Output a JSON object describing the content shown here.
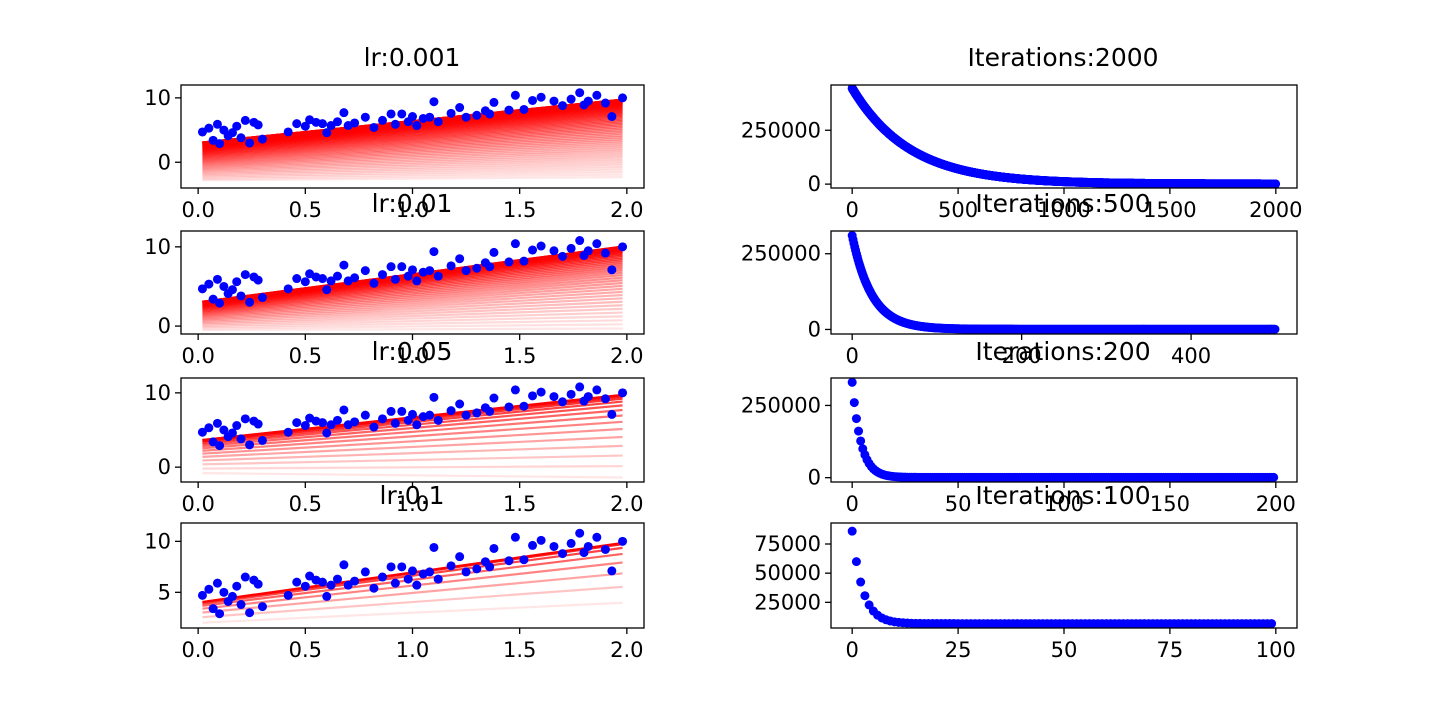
{
  "chart_data": [
    {
      "type": "scatter",
      "title": "lr:0.001",
      "xlabel": "",
      "ylabel": "",
      "xlim": [
        -0.08,
        2.08
      ],
      "ylim": [
        -4,
        12
      ],
      "xticks": [
        "0.0",
        "0.5",
        "1.0",
        "1.5",
        "2.0"
      ],
      "yticks": [
        "0",
        "10"
      ],
      "fit_lines": {
        "count": 60,
        "start_intercept": -2.8,
        "start_slope": 0.25,
        "end_intercept": 3.0,
        "end_slope": 3.4,
        "color": "#ff0000"
      }
    },
    {
      "type": "scatter",
      "title": "lr:0.01",
      "xlabel": "",
      "ylabel": "",
      "xlim": [
        -0.08,
        2.08
      ],
      "ylim": [
        -1,
        12
      ],
      "xticks": [
        "0.0",
        "0.5",
        "1.0",
        "1.5",
        "2.0"
      ],
      "yticks": [
        "0",
        "10"
      ],
      "fit_lines": {
        "count": 40,
        "start_intercept": -0.5,
        "start_slope": 0.1,
        "end_intercept": 3.0,
        "end_slope": 3.55,
        "color": "#ff0000"
      }
    },
    {
      "type": "scatter",
      "title": "lr:0.05",
      "xlabel": "",
      "ylabel": "",
      "xlim": [
        -0.08,
        2.08
      ],
      "ylim": [
        -2,
        12
      ],
      "xticks": [
        "0.0",
        "0.5",
        "1.0",
        "1.5",
        "2.0"
      ],
      "yticks": [
        "0",
        "10"
      ],
      "fit_lines": {
        "count": 15,
        "start_intercept": -0.8,
        "start_slope": -0.3,
        "end_intercept": 3.6,
        "end_slope": 3.1,
        "color": "#ff0000"
      }
    },
    {
      "type": "scatter",
      "title": "lr:0.1",
      "xlabel": "",
      "ylabel": "",
      "xlim": [
        -0.08,
        2.08
      ],
      "ylim": [
        1.5,
        11.8
      ],
      "xticks": [
        "0.0",
        "0.5",
        "1.0",
        "1.5",
        "2.0"
      ],
      "yticks": [
        "5",
        "10"
      ],
      "fit_lines": {
        "count": 8,
        "start_intercept": 2.0,
        "start_slope": 1.0,
        "end_intercept": 4.0,
        "end_slope": 2.95,
        "color": "#ff0000"
      }
    },
    {
      "type": "scatter",
      "title": "Iterations:2000",
      "xlabel": "",
      "ylabel": "",
      "xlim": [
        -100,
        2100
      ],
      "ylim": [
        -18000,
        460000
      ],
      "xticks": [
        "0",
        "500",
        "1000",
        "1500",
        "2000"
      ],
      "yticks": [
        "0",
        "250000"
      ],
      "loss": {
        "iterations": 2000,
        "initial": 445000,
        "final": 500,
        "decay_rate": 0.0037
      }
    },
    {
      "type": "scatter",
      "title": "Iterations:500",
      "xlabel": "",
      "ylabel": "",
      "xlim": [
        -25,
        525
      ],
      "ylim": [
        -15000,
        325000
      ],
      "xticks": [
        "0",
        "200",
        "400"
      ],
      "yticks": [
        "0",
        "250000"
      ],
      "loss": {
        "iterations": 500,
        "initial": 310000,
        "final": 800,
        "decay_rate": 0.043
      }
    },
    {
      "type": "scatter",
      "title": "Iterations:200",
      "xlabel": "",
      "ylabel": "",
      "xlim": [
        -10,
        210
      ],
      "ylim": [
        -15000,
        345000
      ],
      "xticks": [
        "0",
        "50",
        "100",
        "150",
        "200"
      ],
      "yticks": [
        "0",
        "250000"
      ],
      "loss": {
        "iterations": 200,
        "initial": 330000,
        "final": 1000,
        "decay_rate": 0.24
      }
    },
    {
      "type": "scatter",
      "title": "Iterations:100",
      "xlabel": "",
      "ylabel": "",
      "xlim": [
        -5,
        105
      ],
      "ylim": [
        3000,
        93000
      ],
      "xticks": [
        "0",
        "25",
        "50",
        "75",
        "100"
      ],
      "yticks": [
        "25000",
        "50000",
        "75000"
      ],
      "loss": {
        "iterations": 100,
        "initial": 86000,
        "final": 6800,
        "decay_rate": 0.4
      }
    }
  ],
  "scatter_points": {
    "x": [
      0.02,
      0.05,
      0.07,
      0.09,
      0.1,
      0.12,
      0.14,
      0.16,
      0.18,
      0.2,
      0.22,
      0.24,
      0.26,
      0.28,
      0.3,
      0.42,
      0.46,
      0.5,
      0.52,
      0.55,
      0.58,
      0.6,
      0.62,
      0.65,
      0.68,
      0.7,
      0.73,
      0.78,
      0.82,
      0.86,
      0.9,
      0.92,
      0.95,
      0.98,
      1.0,
      1.02,
      1.05,
      1.08,
      1.1,
      1.12,
      1.18,
      1.22,
      1.25,
      1.3,
      1.34,
      1.36,
      1.38,
      1.45,
      1.48,
      1.52,
      1.56,
      1.6,
      1.66,
      1.7,
      1.74,
      1.78,
      1.8,
      1.82,
      1.86,
      1.9,
      1.93,
      1.98
    ],
    "y": [
      4.7,
      5.3,
      3.4,
      5.9,
      2.9,
      5.0,
      4.1,
      4.6,
      5.6,
      3.8,
      6.5,
      3.0,
      6.2,
      5.8,
      3.6,
      4.7,
      6.0,
      5.6,
      6.6,
      6.2,
      6.0,
      4.6,
      5.7,
      6.3,
      7.7,
      5.7,
      6.1,
      7.0,
      5.4,
      6.5,
      7.5,
      5.9,
      7.5,
      6.3,
      7.1,
      5.7,
      6.8,
      7.0,
      9.4,
      6.3,
      7.6,
      8.5,
      7.0,
      7.3,
      8.0,
      7.5,
      9.3,
      8.1,
      10.4,
      8.2,
      9.6,
      10.1,
      9.5,
      8.8,
      9.8,
      10.8,
      8.9,
      9.5,
      10.4,
      9.2,
      7.1,
      10.0
    ]
  },
  "colors": {
    "points": "#0000ff",
    "fit_line": "#ff0000",
    "loss_points": "#0000ff"
  }
}
